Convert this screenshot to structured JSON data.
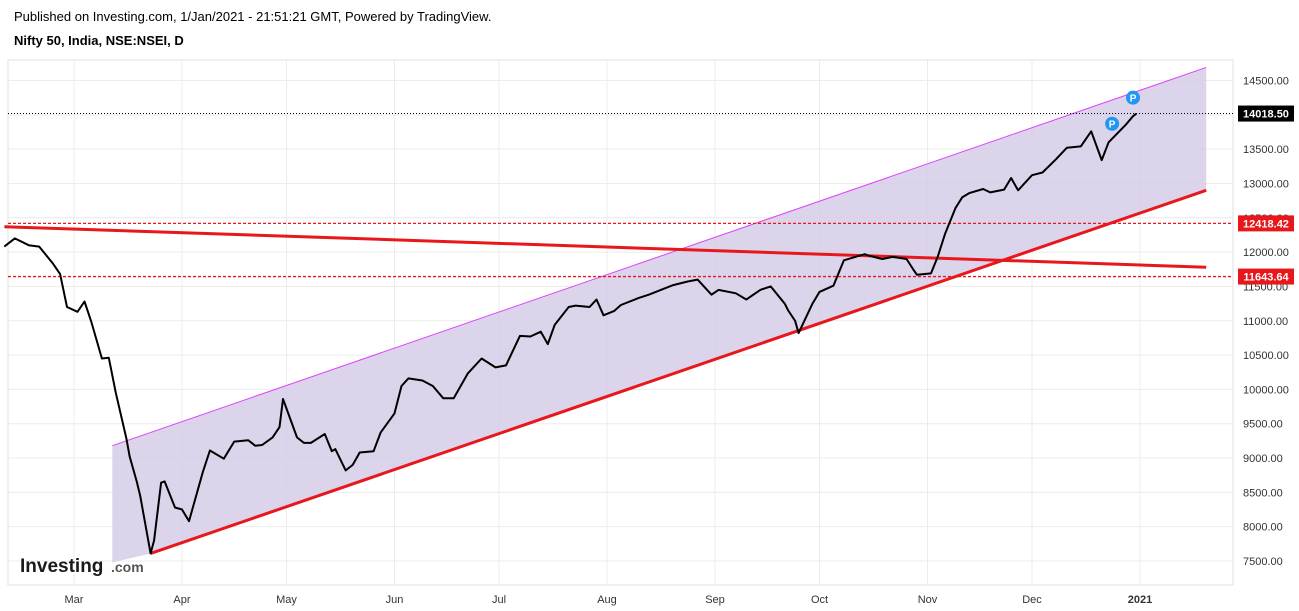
{
  "header": {
    "published": "Published on Investing.com, 1/Jan/2021 - 21:51:21 GMT, Powered by TradingView.",
    "symbol": "Nifty 50, India, NSE:NSEI, D"
  },
  "logo": {
    "main": "Investing",
    "suffix": ".com"
  },
  "colors": {
    "price_line": "#000000",
    "channel_fill": "#d6cde8",
    "channel_top": "#e040fb",
    "trend_red": "#e8171b",
    "grid": "#ececec",
    "pivot_marker": "#2196f3"
  },
  "chart_data": {
    "type": "line",
    "title": "Nifty 50, India, NSE:NSEI, D",
    "xlabel": "",
    "ylabel": "",
    "ylim": [
      7300,
      14750
    ],
    "x_ticks": [
      "Mar",
      "Apr",
      "May",
      "Jun",
      "Jul",
      "Aug",
      "Sep",
      "Oct",
      "Nov",
      "Dec",
      "2021"
    ],
    "y_ticks": [
      "7500.00",
      "8000.00",
      "8500.00",
      "9000.00",
      "9500.00",
      "10000.00",
      "10500.00",
      "11000.00",
      "11500.00",
      "12000.00",
      "12500.00",
      "13000.00",
      "13500.00",
      "14000.00",
      "14500.00"
    ],
    "grid": true,
    "price_labels": [
      {
        "label": "14018.50",
        "value": 14018.5,
        "style": "last"
      },
      {
        "label": "12418.42",
        "value": 12418.42,
        "style": "level"
      },
      {
        "label": "11643.64",
        "value": 11643.64,
        "style": "level"
      }
    ],
    "horizontal_levels": [
      12418.42,
      11643.64
    ],
    "series": [
      {
        "type": "line",
        "x": [
          "2020-02-10",
          "2020-02-13",
          "2020-02-17",
          "2020-02-20",
          "2020-02-24",
          "2020-02-26",
          "2020-02-28",
          "2020-03-02",
          "2020-03-04",
          "2020-03-06",
          "2020-03-09",
          "2020-03-11",
          "2020-03-13",
          "2020-03-16",
          "2020-03-17",
          "2020-03-19",
          "2020-03-20",
          "2020-03-23",
          "2020-03-24",
          "2020-03-26",
          "2020-03-27",
          "2020-03-30",
          "2020-04-01",
          "2020-04-03",
          "2020-04-07",
          "2020-04-09",
          "2020-04-13",
          "2020-04-16",
          "2020-04-20",
          "2020-04-22",
          "2020-04-24",
          "2020-04-27",
          "2020-04-29",
          "2020-04-30",
          "2020-05-04",
          "2020-05-06",
          "2020-05-08",
          "2020-05-12",
          "2020-05-14",
          "2020-05-15",
          "2020-05-18",
          "2020-05-20",
          "2020-05-22",
          "2020-05-26",
          "2020-05-28",
          "2020-06-01",
          "2020-06-03",
          "2020-06-05",
          "2020-06-09",
          "2020-06-12",
          "2020-06-15",
          "2020-06-18",
          "2020-06-22",
          "2020-06-26",
          "2020-06-30",
          "2020-07-03",
          "2020-07-07",
          "2020-07-10",
          "2020-07-13",
          "2020-07-15",
          "2020-07-17",
          "2020-07-21",
          "2020-07-23",
          "2020-07-27",
          "2020-07-29",
          "2020-07-31",
          "2020-08-03",
          "2020-08-05",
          "2020-08-10",
          "2020-08-13",
          "2020-08-17",
          "2020-08-20",
          "2020-08-24",
          "2020-08-27",
          "2020-08-31",
          "2020-09-02",
          "2020-09-07",
          "2020-09-10",
          "2020-09-14",
          "2020-09-17",
          "2020-09-21",
          "2020-09-22",
          "2020-09-24",
          "2020-09-25",
          "2020-09-29",
          "2020-10-01",
          "2020-10-05",
          "2020-10-08",
          "2020-10-12",
          "2020-10-14",
          "2020-10-15",
          "2020-10-19",
          "2020-10-22",
          "2020-10-26",
          "2020-10-28",
          "2020-10-29",
          "2020-11-02",
          "2020-11-04",
          "2020-11-06",
          "2020-11-09",
          "2020-11-11",
          "2020-11-13",
          "2020-11-17",
          "2020-11-19",
          "2020-11-23",
          "2020-11-25",
          "2020-11-27",
          "2020-12-01",
          "2020-12-04",
          "2020-12-08",
          "2020-12-11",
          "2020-12-15",
          "2020-12-18",
          "2020-12-21",
          "2020-12-23",
          "2020-12-28",
          "2020-12-30",
          "2020-12-31"
        ],
        "y": [
          12080,
          12200,
          12100,
          12080,
          11830,
          11680,
          11200,
          11130,
          11280,
          10980,
          10450,
          10460,
          9950,
          9290,
          9020,
          8660,
          8450,
          7610,
          7800,
          8640,
          8660,
          8280,
          8250,
          8080,
          8800,
          9110,
          8990,
          9240,
          9260,
          9180,
          9190,
          9300,
          9450,
          9860,
          9300,
          9220,
          9220,
          9350,
          9100,
          9130,
          8820,
          8900,
          9080,
          9100,
          9370,
          9650,
          10050,
          10160,
          10130,
          10050,
          9870,
          9870,
          10230,
          10450,
          10320,
          10350,
          10780,
          10770,
          10840,
          10660,
          10940,
          11200,
          11220,
          11200,
          11310,
          11080,
          11140,
          11230,
          11330,
          11380,
          11460,
          11520,
          11570,
          11600,
          11380,
          11450,
          11400,
          11310,
          11450,
          11500,
          11250,
          11150,
          11000,
          10820,
          11250,
          11420,
          11510,
          11880,
          11940,
          11970,
          11950,
          11900,
          11930,
          11900,
          11740,
          11670,
          11690,
          11940,
          12260,
          12640,
          12800,
          12860,
          12920,
          12870,
          12910,
          13080,
          12900,
          13120,
          13160,
          13360,
          13520,
          13540,
          13760,
          13340,
          13600,
          13860,
          13980,
          14018.5
        ]
      }
    ],
    "channel": {
      "lower_start": {
        "x": "2020-03-23",
        "y": 7610
      },
      "lower_end": {
        "x": "2021-01-20",
        "y": 12900
      },
      "upper_start": {
        "x": "2020-03-12",
        "y": 9180
      },
      "upper_end": {
        "x": "2021-01-20",
        "y": 14690
      },
      "fill_start_bottom": {
        "x": "2020-03-12",
        "y": 7480
      }
    },
    "resistance_line": {
      "start": {
        "x": "2020-02-10",
        "y": 12370
      },
      "end": {
        "x": "2021-01-20",
        "y": 11780
      }
    },
    "pivot_markers": [
      {
        "label": "P",
        "x": "2020-12-30",
        "y": 14250
      },
      {
        "label": "P",
        "x": "2020-12-24",
        "y": 13870
      }
    ]
  }
}
